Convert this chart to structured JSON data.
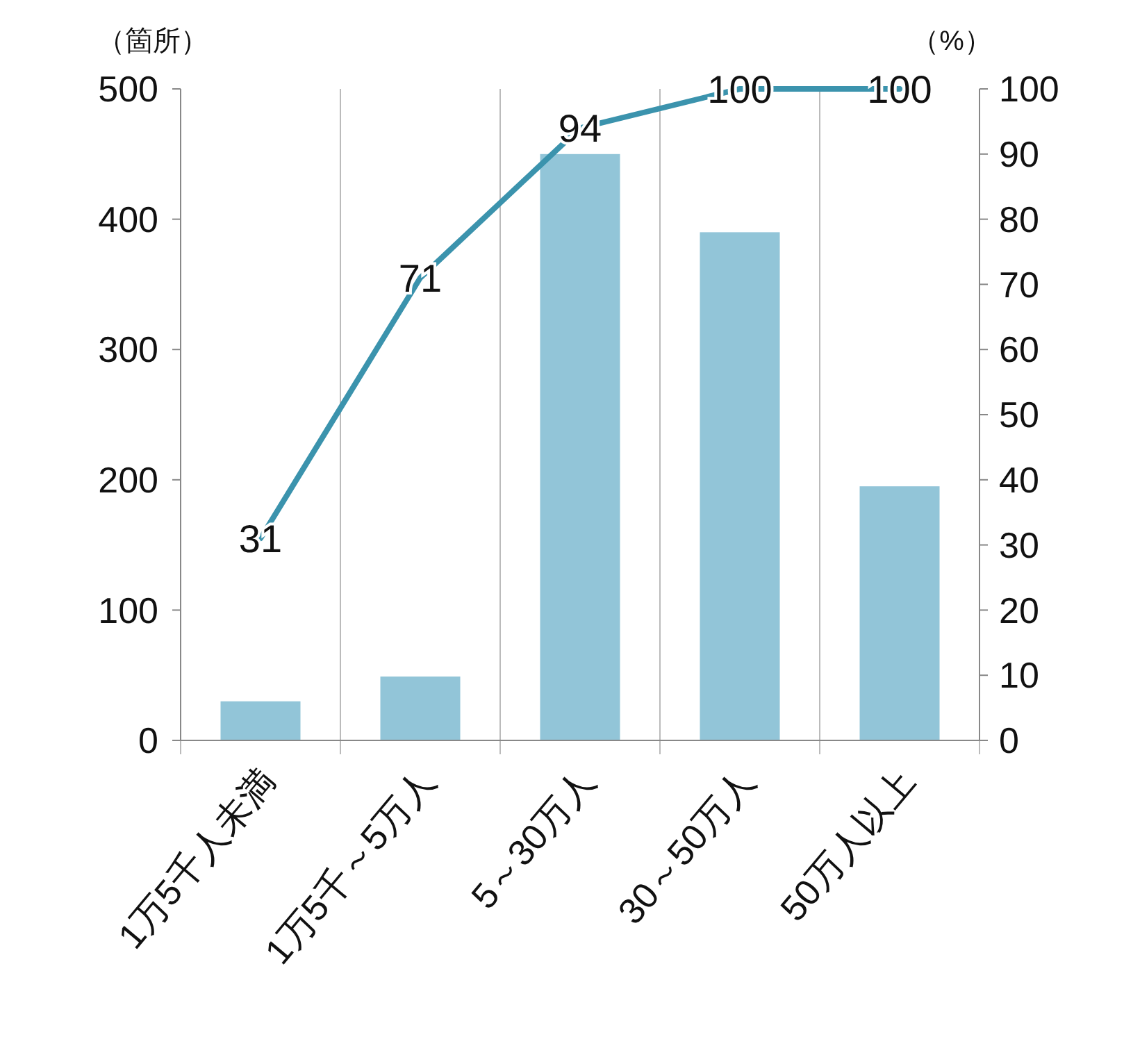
{
  "chart_data": {
    "type": "bar",
    "ylabel": "（箇所）",
    "y2label": "（%）",
    "categories": [
      "1万5千人未満",
      "1万5千～5万人",
      "5～30万人",
      "30～50万人",
      "50万人以上"
    ],
    "series": [
      {
        "color": "#92c5d8",
        "values": [
          30,
          49,
          450,
          390,
          195
        ]
      },
      {
        "type": "line",
        "axis": "y2",
        "color": "#3b93ad",
        "values": [
          31,
          71,
          94,
          100,
          100
        ],
        "value_labels": [
          "31",
          "71",
          "94",
          "100",
          "100"
        ]
      }
    ],
    "ylim": [
      0,
      500
    ],
    "yticks": [
      0,
      100,
      200,
      300,
      400,
      500
    ],
    "y2lim": [
      0,
      100
    ],
    "y2ticks": [
      0,
      10,
      20,
      30,
      40,
      50,
      60,
      70,
      80,
      90,
      100
    ],
    "grid": "x",
    "marker": "none",
    "line_style": "solid"
  }
}
